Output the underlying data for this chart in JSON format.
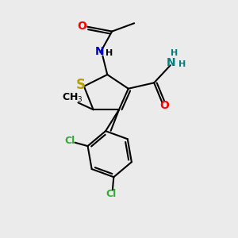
{
  "bg_color": "#ebebeb",
  "atom_colors": {
    "S": "#b8a000",
    "O": "#ff0000",
    "N_blue": "#0000cc",
    "N_teal": "#008080",
    "Cl": "#33aa33",
    "C": "#000000",
    "H": "#000000"
  },
  "bond_color": "#000000",
  "bond_width": 1.5,
  "font_size_atom": 10,
  "font_size_small": 9
}
